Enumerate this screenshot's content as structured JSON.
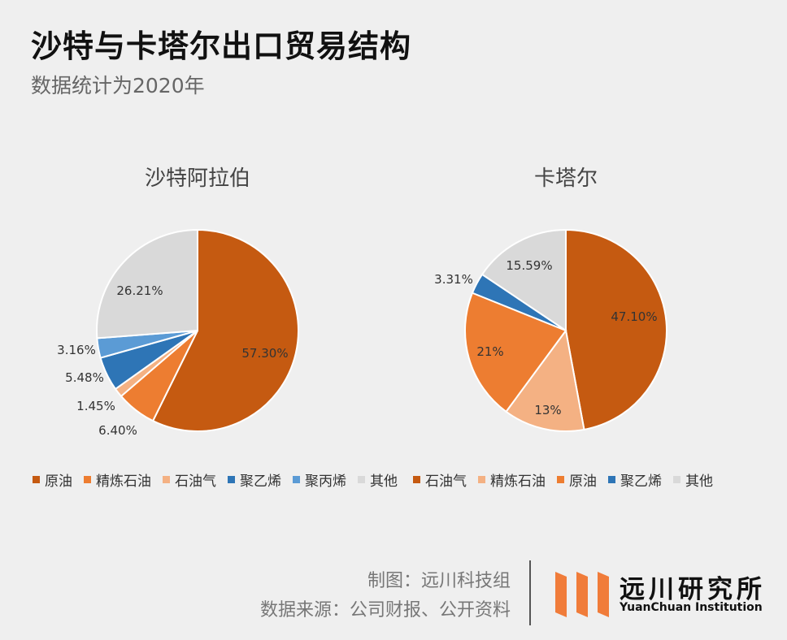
{
  "header": {
    "title": "沙特与卡塔尔出口贸易结构",
    "subtitle": "数据统计为2020年"
  },
  "chart_data": [
    {
      "type": "pie",
      "title": "沙特阿拉伯",
      "slices": [
        {
          "name": "原油",
          "value": 57.3,
          "label": "57.30%",
          "color": "#c55a11"
        },
        {
          "name": "精炼石油",
          "value": 6.4,
          "label": "6.40%",
          "color": "#ed7d31"
        },
        {
          "name": "石油气",
          "value": 1.45,
          "label": "1.45%",
          "color": "#f4b183"
        },
        {
          "name": "聚乙烯",
          "value": 5.48,
          "label": "5.48%",
          "color": "#2e75b6"
        },
        {
          "name": "聚丙烯",
          "value": 3.16,
          "label": "3.16%",
          "color": "#5b9bd5"
        },
        {
          "name": "其他",
          "value": 26.21,
          "label": "26.21%",
          "color": "#d9d9d9"
        }
      ],
      "legend": [
        "原油",
        "精炼石油",
        "石油气",
        "聚乙烯",
        "聚丙烯",
        "其他"
      ]
    },
    {
      "type": "pie",
      "title": "卡塔尔",
      "slices": [
        {
          "name": "石油气",
          "value": 47.1,
          "label": "47.10%",
          "color": "#c55a11"
        },
        {
          "name": "精炼石油",
          "value": 13,
          "label": "13%",
          "color": "#f4b183"
        },
        {
          "name": "原油",
          "value": 21,
          "label": "21%",
          "color": "#ed7d31"
        },
        {
          "name": "聚乙烯",
          "value": 3.31,
          "label": "3.31%",
          "color": "#2e75b6"
        },
        {
          "name": "其他",
          "value": 15.59,
          "label": "15.59%",
          "color": "#d9d9d9"
        }
      ],
      "legend": [
        "石油气",
        "精炼石油",
        "原油",
        "聚乙烯",
        "其他"
      ]
    }
  ],
  "footer": {
    "made_by": "制图：远川科技组",
    "source": "数据来源：公司财报、公开资料",
    "logo_name": "远川研究所",
    "logo_en": "YuanChuan Institution",
    "logo_color": "#f07c3a"
  }
}
